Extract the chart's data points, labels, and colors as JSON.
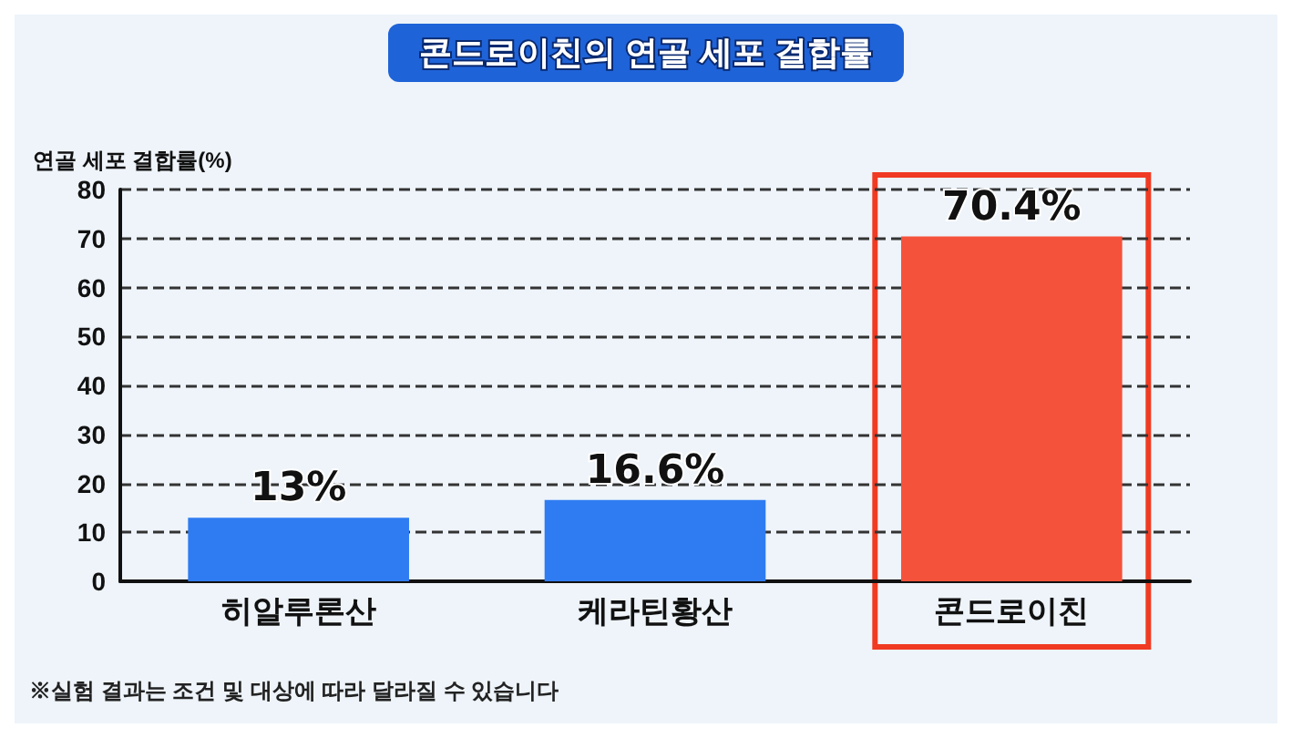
{
  "chart_data": {
    "type": "bar",
    "title": "콘드로이친의 연골 세포 결합률",
    "ylabel": "연골 세포 결합률(%)",
    "categories": [
      "히알루론산",
      "케라틴황산",
      "콘드로이친"
    ],
    "values": [
      13,
      16.6,
      70.4
    ],
    "value_labels": [
      "13%",
      "16.6%",
      "70.4%"
    ],
    "colors": [
      "#2f7cf2",
      "#2f7cf2",
      "#f5523b"
    ],
    "ylim": [
      0,
      80
    ],
    "yticks": [
      0,
      10,
      20,
      30,
      40,
      50,
      60,
      70,
      80
    ],
    "grid": "y",
    "annotations": [
      "※실험 결과는 조건 및 대상에 따라 달라질 수 있습니다"
    ]
  }
}
